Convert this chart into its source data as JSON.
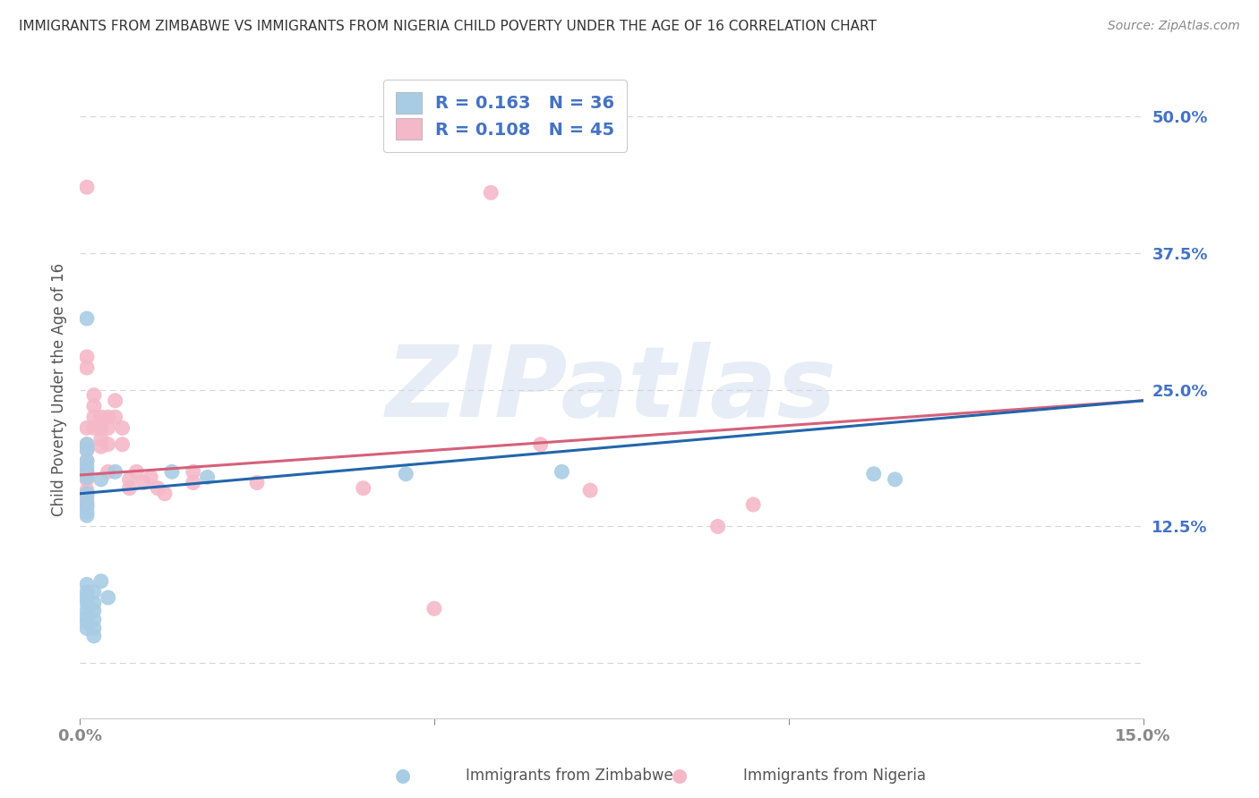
{
  "title": "IMMIGRANTS FROM ZIMBABWE VS IMMIGRANTS FROM NIGERIA CHILD POVERTY UNDER THE AGE OF 16 CORRELATION CHART",
  "source": "Source: ZipAtlas.com",
  "ylabel": "Child Poverty Under the Age of 16",
  "watermark": "ZIPatlas",
  "legend_R_blue": "R = 0.163",
  "legend_N_blue": "N = 36",
  "legend_R_pink": "R = 0.108",
  "legend_N_pink": "N = 45",
  "legend_label_blue": "Immigrants from Zimbabwe",
  "legend_label_pink": "Immigrants from Nigeria",
  "xlim": [
    0.0,
    0.15
  ],
  "ylim": [
    -0.05,
    0.55
  ],
  "yticks": [
    0.0,
    0.125,
    0.25,
    0.375,
    0.5
  ],
  "ytick_labels": [
    "",
    "12.5%",
    "25.0%",
    "37.5%",
    "50.0%"
  ],
  "xticks": [
    0.0,
    0.05,
    0.1,
    0.15
  ],
  "blue_color": "#a8cce4",
  "pink_color": "#f4b8c8",
  "line_blue": "#2166ac",
  "line_pink": "#d6607a",
  "blue_scatter": [
    [
      0.001,
      0.315
    ],
    [
      0.001,
      0.2
    ],
    [
      0.001,
      0.195
    ],
    [
      0.001,
      0.185
    ],
    [
      0.001,
      0.18
    ],
    [
      0.001,
      0.175
    ],
    [
      0.001,
      0.17
    ],
    [
      0.001,
      0.155
    ],
    [
      0.001,
      0.148
    ],
    [
      0.001,
      0.143
    ],
    [
      0.001,
      0.138
    ],
    [
      0.001,
      0.135
    ],
    [
      0.001,
      0.072
    ],
    [
      0.001,
      0.065
    ],
    [
      0.001,
      0.06
    ],
    [
      0.001,
      0.055
    ],
    [
      0.001,
      0.048
    ],
    [
      0.001,
      0.042
    ],
    [
      0.001,
      0.038
    ],
    [
      0.001,
      0.032
    ],
    [
      0.002,
      0.065
    ],
    [
      0.002,
      0.055
    ],
    [
      0.002,
      0.048
    ],
    [
      0.002,
      0.04
    ],
    [
      0.002,
      0.032
    ],
    [
      0.002,
      0.025
    ],
    [
      0.003,
      0.168
    ],
    [
      0.003,
      0.075
    ],
    [
      0.004,
      0.06
    ],
    [
      0.005,
      0.175
    ],
    [
      0.013,
      0.175
    ],
    [
      0.018,
      0.17
    ],
    [
      0.046,
      0.173
    ],
    [
      0.068,
      0.175
    ],
    [
      0.112,
      0.173
    ],
    [
      0.115,
      0.168
    ]
  ],
  "pink_scatter": [
    [
      0.001,
      0.435
    ],
    [
      0.001,
      0.28
    ],
    [
      0.001,
      0.27
    ],
    [
      0.001,
      0.215
    ],
    [
      0.001,
      0.2
    ],
    [
      0.001,
      0.195
    ],
    [
      0.001,
      0.185
    ],
    [
      0.001,
      0.175
    ],
    [
      0.001,
      0.168
    ],
    [
      0.001,
      0.158
    ],
    [
      0.001,
      0.152
    ],
    [
      0.001,
      0.145
    ],
    [
      0.002,
      0.245
    ],
    [
      0.002,
      0.235
    ],
    [
      0.002,
      0.225
    ],
    [
      0.002,
      0.215
    ],
    [
      0.003,
      0.225
    ],
    [
      0.003,
      0.215
    ],
    [
      0.003,
      0.205
    ],
    [
      0.003,
      0.198
    ],
    [
      0.004,
      0.225
    ],
    [
      0.004,
      0.215
    ],
    [
      0.004,
      0.2
    ],
    [
      0.004,
      0.175
    ],
    [
      0.005,
      0.24
    ],
    [
      0.005,
      0.225
    ],
    [
      0.006,
      0.215
    ],
    [
      0.006,
      0.2
    ],
    [
      0.007,
      0.168
    ],
    [
      0.007,
      0.16
    ],
    [
      0.008,
      0.175
    ],
    [
      0.009,
      0.165
    ],
    [
      0.01,
      0.17
    ],
    [
      0.011,
      0.16
    ],
    [
      0.012,
      0.155
    ],
    [
      0.016,
      0.175
    ],
    [
      0.016,
      0.165
    ],
    [
      0.025,
      0.165
    ],
    [
      0.04,
      0.16
    ],
    [
      0.05,
      0.05
    ],
    [
      0.058,
      0.43
    ],
    [
      0.065,
      0.2
    ],
    [
      0.072,
      0.158
    ],
    [
      0.09,
      0.125
    ],
    [
      0.095,
      0.145
    ]
  ],
  "blue_line_x": [
    0.0,
    0.15
  ],
  "blue_line_y": [
    0.155,
    0.24
  ],
  "pink_line_x": [
    0.0,
    0.15
  ],
  "pink_line_y": [
    0.172,
    0.24
  ],
  "background_color": "#ffffff",
  "grid_color": "#cccccc",
  "title_color": "#333333",
  "axis_label_color": "#4472c4",
  "tick_color": "#4472c4"
}
